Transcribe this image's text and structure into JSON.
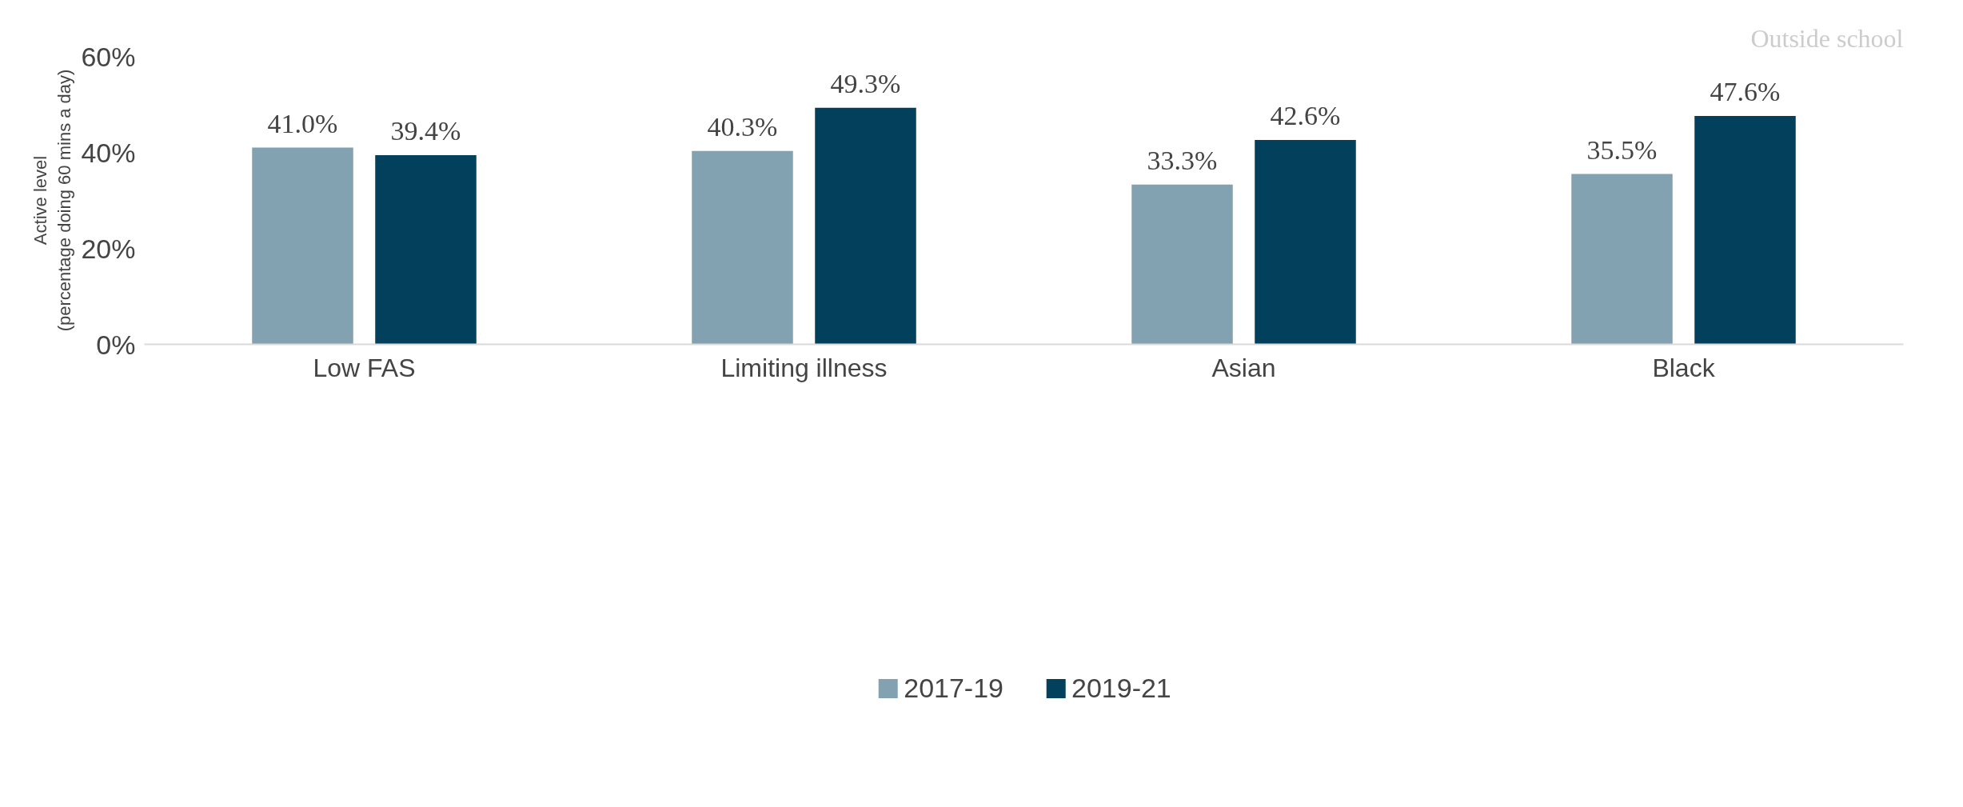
{
  "chart_data": {
    "type": "bar",
    "ylabel": "Active level\n(percentage doing 60 mins a day)",
    "categories": [
      "Low FAS",
      "Limiting illness",
      "Asian",
      "Black"
    ],
    "series": [
      {
        "name": "2017-19",
        "color": "#82a2b1",
        "values": [
          41.0,
          40.3,
          33.3,
          35.5
        ],
        "value_labels": [
          "41.0%",
          "40.3%",
          "33.3%",
          "35.5%"
        ]
      },
      {
        "name": "2019-21",
        "color": "#02405b",
        "values": [
          39.4,
          49.3,
          42.6,
          47.6
        ],
        "value_labels": [
          "39.4%",
          "49.3%",
          "42.6%",
          "47.6%"
        ]
      }
    ],
    "ylim": [
      0,
      60
    ],
    "yticks": [
      {
        "value": 0,
        "label": "0%"
      },
      {
        "value": 20,
        "label": "20%"
      },
      {
        "value": 40,
        "label": "40%"
      },
      {
        "value": 60,
        "label": "60%"
      }
    ],
    "grid": false,
    "legend": "bottom",
    "annotations": [
      "Outside school"
    ]
  }
}
